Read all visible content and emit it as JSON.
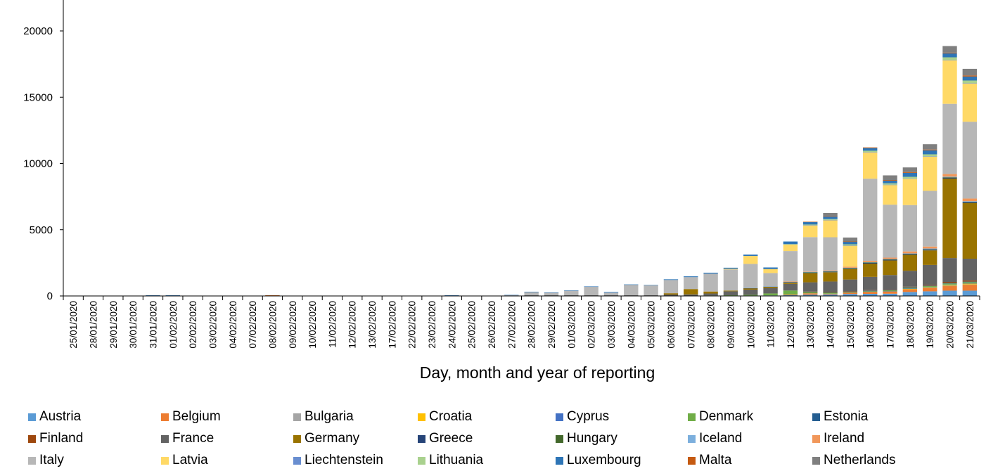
{
  "chart_data": {
    "type": "bar",
    "stacked": true,
    "title": "",
    "xlabel": "Day, month and year of reporting",
    "ylabel": "",
    "ylim": [
      0,
      22000
    ],
    "yticks": [
      0,
      5000,
      10000,
      15000,
      20000
    ],
    "grid": false,
    "legend_position": "bottom",
    "categories": [
      "25/01/2020",
      "28/01/2020",
      "29/01/2020",
      "30/01/2020",
      "31/01/2020",
      "01/02/2020",
      "02/02/2020",
      "03/02/2020",
      "04/02/2020",
      "07/02/2020",
      "08/02/2020",
      "09/02/2020",
      "10/02/2020",
      "11/02/2020",
      "12/02/2020",
      "13/02/2020",
      "17/02/2020",
      "22/02/2020",
      "23/02/2020",
      "24/02/2020",
      "25/02/2020",
      "26/02/2020",
      "27/02/2020",
      "28/02/2020",
      "29/02/2020",
      "01/03/2020",
      "02/03/2020",
      "03/03/2020",
      "04/03/2020",
      "05/03/2020",
      "06/03/2020",
      "07/03/2020",
      "08/03/2020",
      "09/03/2020",
      "10/03/2020",
      "11/03/2020",
      "12/03/2020",
      "13/03/2020",
      "14/03/2020",
      "15/03/2020",
      "16/03/2020",
      "17/03/2020",
      "18/03/2020",
      "19/03/2020",
      "20/03/2020",
      "21/03/2020"
    ],
    "series": [
      {
        "name": "Austria",
        "color": "#5b9bd5",
        "values": [
          0,
          0,
          0,
          0,
          0,
          0,
          0,
          0,
          0,
          0,
          0,
          0,
          0,
          0,
          0,
          0,
          0,
          0,
          0,
          0,
          0,
          0,
          0,
          0,
          0,
          0,
          0,
          0,
          0,
          0,
          5,
          10,
          15,
          20,
          30,
          40,
          60,
          100,
          120,
          150,
          160,
          170,
          300,
          350,
          400,
          400
        ]
      },
      {
        "name": "Belgium",
        "color": "#ed7d31",
        "values": [
          0,
          0,
          0,
          0,
          0,
          0,
          0,
          0,
          0,
          0,
          0,
          0,
          0,
          0,
          0,
          0,
          0,
          0,
          0,
          0,
          0,
          0,
          0,
          0,
          0,
          0,
          0,
          0,
          0,
          0,
          0,
          0,
          0,
          0,
          0,
          0,
          50,
          100,
          50,
          100,
          150,
          150,
          200,
          250,
          350,
          450
        ]
      },
      {
        "name": "Bulgaria",
        "color": "#a5a5a5",
        "values": [
          0,
          0,
          0,
          0,
          0,
          0,
          0,
          0,
          0,
          0,
          0,
          0,
          0,
          0,
          0,
          0,
          0,
          0,
          0,
          0,
          0,
          0,
          0,
          0,
          0,
          0,
          0,
          0,
          0,
          0,
          0,
          0,
          0,
          0,
          0,
          0,
          0,
          0,
          0,
          0,
          0,
          0,
          0,
          0,
          20,
          20
        ]
      },
      {
        "name": "Croatia",
        "color": "#ffc000",
        "values": [
          0,
          0,
          0,
          0,
          0,
          0,
          0,
          0,
          0,
          0,
          0,
          0,
          0,
          0,
          0,
          0,
          0,
          0,
          0,
          0,
          0,
          0,
          0,
          0,
          0,
          0,
          0,
          0,
          0,
          0,
          0,
          0,
          0,
          0,
          0,
          0,
          0,
          0,
          0,
          0,
          20,
          30,
          40,
          50,
          60,
          60
        ]
      },
      {
        "name": "Cyprus",
        "color": "#4472c4",
        "values": [
          0,
          0,
          0,
          0,
          0,
          0,
          0,
          0,
          0,
          0,
          0,
          0,
          0,
          0,
          0,
          0,
          0,
          0,
          0,
          0,
          0,
          0,
          0,
          0,
          0,
          0,
          0,
          0,
          0,
          0,
          0,
          0,
          0,
          0,
          0,
          0,
          0,
          0,
          0,
          0,
          10,
          20,
          20,
          20,
          30,
          30
        ]
      },
      {
        "name": "Denmark",
        "color": "#70ad47",
        "values": [
          0,
          0,
          0,
          0,
          0,
          0,
          0,
          0,
          0,
          0,
          0,
          0,
          0,
          0,
          0,
          0,
          0,
          0,
          0,
          0,
          0,
          0,
          0,
          0,
          0,
          0,
          0,
          0,
          0,
          0,
          0,
          10,
          20,
          30,
          50,
          150,
          300,
          100,
          80,
          50,
          50,
          50,
          60,
          70,
          80,
          80
        ]
      },
      {
        "name": "Estonia",
        "color": "#255e91",
        "values": [
          0,
          0,
          0,
          0,
          0,
          0,
          0,
          0,
          0,
          0,
          0,
          0,
          0,
          0,
          0,
          0,
          0,
          0,
          0,
          0,
          0,
          0,
          0,
          0,
          0,
          0,
          0,
          0,
          0,
          0,
          0,
          0,
          0,
          0,
          0,
          0,
          0,
          10,
          20,
          20,
          20,
          30,
          40,
          40,
          40,
          40
        ]
      },
      {
        "name": "Finland",
        "color": "#9e480e",
        "values": [
          0,
          0,
          0,
          0,
          0,
          0,
          0,
          0,
          0,
          0,
          0,
          0,
          0,
          0,
          0,
          0,
          0,
          0,
          0,
          0,
          0,
          0,
          0,
          0,
          0,
          0,
          0,
          0,
          0,
          0,
          0,
          0,
          0,
          0,
          0,
          0,
          0,
          20,
          20,
          20,
          30,
          30,
          40,
          60,
          80,
          80
        ]
      },
      {
        "name": "France",
        "color": "#636363",
        "values": [
          0,
          0,
          0,
          0,
          0,
          0,
          0,
          0,
          0,
          0,
          0,
          0,
          0,
          0,
          0,
          0,
          0,
          0,
          0,
          0,
          0,
          0,
          0,
          50,
          50,
          50,
          50,
          50,
          50,
          50,
          100,
          100,
          150,
          300,
          400,
          400,
          500,
          700,
          800,
          900,
          1000,
          1100,
          1200,
          1500,
          1800,
          1650
        ]
      },
      {
        "name": "Germany",
        "color": "#997300",
        "values": [
          0,
          0,
          0,
          0,
          0,
          0,
          0,
          0,
          0,
          0,
          30,
          0,
          0,
          0,
          0,
          0,
          0,
          0,
          0,
          0,
          0,
          0,
          0,
          0,
          0,
          0,
          0,
          0,
          0,
          0,
          100,
          400,
          150,
          50,
          100,
          100,
          100,
          700,
          700,
          800,
          1000,
          1100,
          1200,
          1100,
          6000,
          4200
        ]
      },
      {
        "name": "Greece",
        "color": "#264478",
        "values": [
          0,
          0,
          0,
          0,
          0,
          0,
          0,
          0,
          0,
          0,
          0,
          0,
          0,
          0,
          0,
          0,
          0,
          0,
          0,
          0,
          0,
          0,
          0,
          0,
          0,
          0,
          0,
          0,
          0,
          0,
          0,
          0,
          0,
          0,
          20,
          20,
          30,
          40,
          50,
          50,
          60,
          60,
          60,
          70,
          70,
          70
        ]
      },
      {
        "name": "Hungary",
        "color": "#43682b",
        "values": [
          0,
          0,
          0,
          0,
          0,
          0,
          0,
          0,
          0,
          0,
          0,
          0,
          0,
          0,
          0,
          0,
          0,
          0,
          0,
          0,
          0,
          0,
          0,
          0,
          0,
          0,
          0,
          0,
          0,
          0,
          0,
          0,
          0,
          0,
          0,
          0,
          0,
          10,
          10,
          10,
          20,
          20,
          20,
          30,
          30,
          30
        ]
      },
      {
        "name": "Iceland",
        "color": "#7cafdd",
        "values": [
          0,
          0,
          0,
          0,
          0,
          0,
          0,
          0,
          0,
          0,
          0,
          0,
          0,
          0,
          0,
          0,
          0,
          0,
          0,
          0,
          0,
          0,
          0,
          0,
          0,
          0,
          0,
          0,
          0,
          0,
          0,
          0,
          0,
          0,
          20,
          20,
          30,
          30,
          30,
          30,
          30,
          30,
          30,
          40,
          40,
          40
        ]
      },
      {
        "name": "Ireland",
        "color": "#f1975a",
        "values": [
          0,
          0,
          0,
          0,
          0,
          0,
          0,
          0,
          0,
          0,
          0,
          0,
          0,
          0,
          0,
          0,
          0,
          0,
          0,
          0,
          0,
          0,
          0,
          0,
          0,
          0,
          0,
          0,
          0,
          0,
          0,
          0,
          0,
          0,
          0,
          0,
          20,
          30,
          50,
          80,
          100,
          100,
          150,
          150,
          200,
          200
        ]
      },
      {
        "name": "Italy",
        "color": "#b7b7b7",
        "values": [
          0,
          0,
          0,
          0,
          0,
          0,
          0,
          0,
          0,
          0,
          0,
          0,
          0,
          0,
          0,
          0,
          0,
          0,
          0,
          0,
          20,
          20,
          60,
          250,
          200,
          350,
          650,
          200,
          800,
          750,
          1000,
          900,
          1350,
          1600,
          1800,
          1000,
          2300,
          2600,
          2500,
          0,
          6200,
          4000,
          3500,
          4200,
          5300,
          5800
        ]
      },
      {
        "name": "Latvia",
        "color": "#ffd966",
        "values": [
          0,
          0,
          0,
          0,
          0,
          0,
          0,
          0,
          0,
          0,
          0,
          0,
          0,
          0,
          0,
          0,
          0,
          0,
          0,
          0,
          0,
          0,
          0,
          0,
          0,
          0,
          0,
          0,
          0,
          0,
          0,
          0,
          0,
          50,
          600,
          300,
          500,
          900,
          1300,
          1600,
          2000,
          1500,
          2000,
          2600,
          3300,
          2900
        ]
      },
      {
        "name": "Liechtenstein",
        "color": "#698ed0",
        "values": [
          0,
          0,
          0,
          0,
          0,
          0,
          0,
          0,
          0,
          0,
          0,
          0,
          0,
          0,
          0,
          0,
          0,
          0,
          0,
          0,
          0,
          0,
          0,
          0,
          0,
          0,
          0,
          0,
          0,
          0,
          0,
          0,
          0,
          0,
          0,
          0,
          0,
          10,
          10,
          10,
          10,
          10,
          10,
          10,
          10,
          10
        ]
      },
      {
        "name": "Lithuania",
        "color": "#a9d18e",
        "values": [
          0,
          0,
          0,
          0,
          0,
          0,
          0,
          0,
          0,
          0,
          0,
          0,
          0,
          0,
          0,
          0,
          0,
          0,
          0,
          0,
          0,
          0,
          0,
          0,
          0,
          0,
          0,
          0,
          0,
          0,
          0,
          0,
          0,
          0,
          0,
          0,
          20,
          40,
          60,
          80,
          100,
          100,
          120,
          150,
          200,
          200
        ]
      },
      {
        "name": "Luxembourg",
        "color": "#2e75b6",
        "values": [
          0,
          0,
          0,
          0,
          50,
          50,
          0,
          0,
          0,
          0,
          0,
          0,
          0,
          0,
          0,
          0,
          0,
          0,
          0,
          50,
          0,
          0,
          20,
          20,
          20,
          20,
          20,
          50,
          20,
          30,
          50,
          60,
          70,
          80,
          100,
          120,
          200,
          200,
          200,
          200,
          200,
          200,
          300,
          300,
          300,
          300
        ]
      },
      {
        "name": "Malta",
        "color": "#c55a11",
        "values": [
          0,
          0,
          0,
          0,
          0,
          0,
          0,
          0,
          0,
          0,
          20,
          0,
          0,
          0,
          0,
          0,
          0,
          0,
          0,
          0,
          0,
          0,
          0,
          0,
          0,
          0,
          0,
          0,
          0,
          0,
          0,
          0,
          0,
          0,
          0,
          0,
          0,
          10,
          10,
          10,
          50,
          50,
          60,
          60,
          50,
          80
        ]
      },
      {
        "name": "Netherlands",
        "color": "#7f7f7f",
        "values": [
          0,
          0,
          0,
          0,
          0,
          0,
          0,
          0,
          0,
          0,
          0,
          0,
          0,
          0,
          0,
          0,
          0,
          0,
          0,
          0,
          0,
          0,
          0,
          0,
          0,
          0,
          0,
          0,
          0,
          0,
          0,
          0,
          0,
          0,
          0,
          0,
          0,
          0,
          250,
          300,
          0,
          350,
          350,
          400,
          500,
          500
        ]
      }
    ]
  }
}
